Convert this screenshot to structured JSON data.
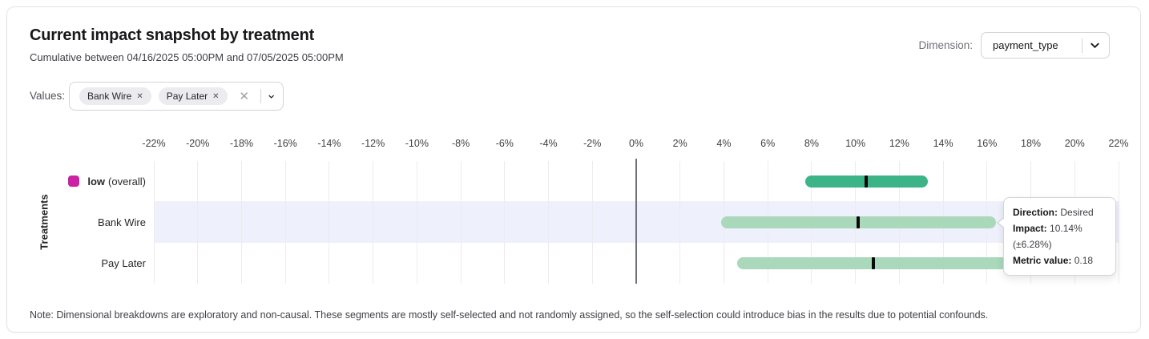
{
  "header": {
    "title": "Current impact snapshot by treatment",
    "subtitle": "Cumulative between 04/16/2025 05:00PM and 07/05/2025 05:00PM",
    "dimension_label": "Dimension:",
    "dimension_value": "payment_type"
  },
  "filters": {
    "values_label": "Values:",
    "chips": [
      {
        "label": "Bank Wire"
      },
      {
        "label": "Pay Later"
      }
    ],
    "chip_remove_glyph": "✕",
    "clear_glyph": "✕"
  },
  "chart_data": {
    "type": "bar",
    "orientation": "horizontal-interval",
    "title": "Current impact snapshot by treatment",
    "xlabel": "",
    "ylabel": "Treatments",
    "xlim": [
      -22,
      22
    ],
    "x_ticks": [
      -22,
      -20,
      -18,
      -16,
      -14,
      -12,
      -10,
      -8,
      -6,
      -4,
      -2,
      0,
      2,
      4,
      6,
      8,
      10,
      12,
      14,
      16,
      18,
      20,
      22
    ],
    "x_tick_suffix": "%",
    "grid": true,
    "zero_line_color": "#71717a",
    "highlight_band_color": "#eef0fb",
    "rows": [
      {
        "label": "low",
        "label_suffix": "(overall)",
        "swatch_color": "#cb21a2",
        "bar_color": "#3cb487",
        "low_pct": 7.7,
        "high_pct": 13.3,
        "impact_pct": 10.5,
        "highlighted": false
      },
      {
        "label": "Bank Wire",
        "label_suffix": "",
        "swatch_color": "",
        "bar_color": "#a9d8ba",
        "low_pct": 3.86,
        "high_pct": 16.42,
        "impact_pct": 10.14,
        "highlighted": true
      },
      {
        "label": "Pay Later",
        "label_suffix": "",
        "swatch_color": "",
        "bar_color": "#a9d8ba",
        "low_pct": 4.6,
        "high_pct": 17.1,
        "impact_pct": 10.8,
        "highlighted": false
      }
    ]
  },
  "tooltip": {
    "direction_label": "Direction:",
    "direction_value": "Desired",
    "impact_label": "Impact:",
    "impact_value": "10.14% (±6.28%)",
    "metric_label": "Metric value:",
    "metric_value": "0.18"
  },
  "note": "Note: Dimensional breakdowns are exploratory and non-causal. These segments are mostly self-selected and not randomly assigned, so the self-selection could introduce bias in the results due to potential confounds."
}
